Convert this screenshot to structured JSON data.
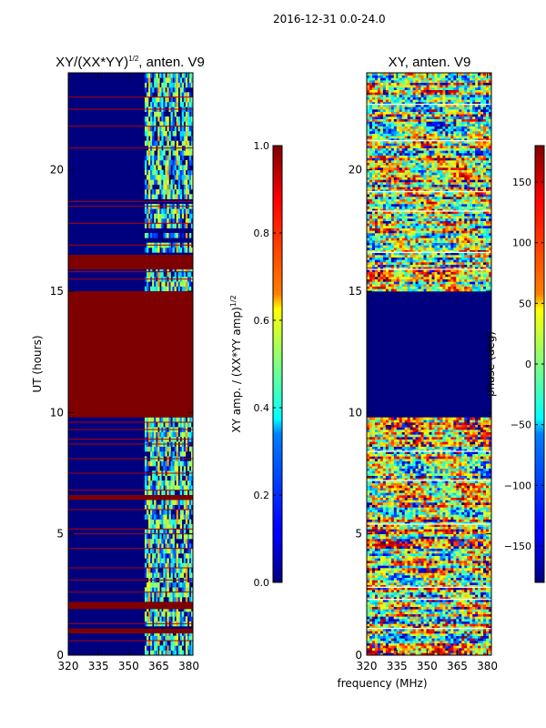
{
  "figure_title": "2016-12-31 0.0-24.0",
  "chart_data": [
    {
      "type": "heatmap",
      "title_main": "XY/(XX*YY)",
      "title_exp": "1/2",
      "title_suffix": ", anten. V9",
      "xlabel": "",
      "ylabel": "UT (hours)",
      "xlim": [
        320,
        382
      ],
      "ylim": [
        0,
        24
      ],
      "xticks": [
        "320",
        "335",
        "350",
        "365",
        "380"
      ],
      "xtick_values": [
        320,
        335,
        350,
        365,
        380
      ],
      "yticks": [
        "0",
        "5",
        "10",
        "15",
        "20"
      ],
      "ytick_values": [
        0,
        5,
        10,
        15,
        20
      ],
      "colorbar": {
        "label_main": "XY amp. / (XX*YY amp)",
        "label_exp": "1/2",
        "range": [
          0.0,
          1.0
        ],
        "ticks": [
          "0.0",
          "0.2",
          "0.4",
          "0.6",
          "0.8",
          "1.0"
        ],
        "tick_values": [
          0.0,
          0.2,
          0.4,
          0.6,
          0.8,
          1.0
        ]
      },
      "solid_bands_ut": [
        [
          9.8,
          15.0
        ],
        [
          15.9,
          16.5
        ],
        [
          1.9,
          2.2
        ],
        [
          6.4,
          6.6
        ],
        [
          0.9,
          1.1
        ]
      ],
      "active_freq_range_mhz": [
        358,
        382
      ]
    },
    {
      "type": "heatmap",
      "title_main": "XY, anten. V9",
      "xlabel": "frequency (MHz)",
      "ylabel": "",
      "xlim": [
        320,
        382
      ],
      "ylim": [
        0,
        24
      ],
      "xticks": [
        "320",
        "335",
        "350",
        "365",
        "380"
      ],
      "xtick_values": [
        320,
        335,
        350,
        365,
        380
      ],
      "yticks": [
        "0",
        "5",
        "10",
        "15",
        "20"
      ],
      "ytick_values": [
        0,
        5,
        10,
        15,
        20
      ],
      "colorbar": {
        "label_main": "phase (deg)",
        "range": [
          -180,
          180
        ],
        "ticks": [
          "−150",
          "−100",
          "−50",
          "0",
          "50",
          "100",
          "150"
        ],
        "tick_values": [
          -150,
          -100,
          -50,
          0,
          50,
          100,
          150
        ]
      },
      "solid_bands_ut": [
        [
          9.8,
          15.0
        ]
      ]
    }
  ],
  "colors": {
    "dark_blue": "#00007f",
    "dark_red": "#7f0000"
  }
}
